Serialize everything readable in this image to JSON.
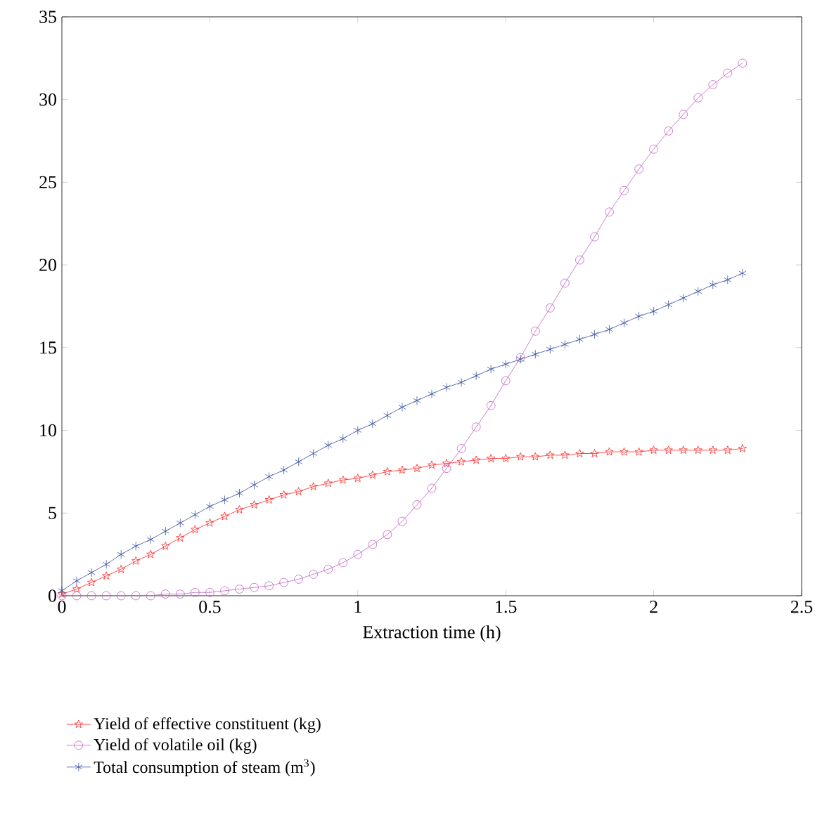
{
  "chart_data": {
    "type": "line",
    "xlabel": "Extraction time (h)",
    "xlim": [
      0,
      2.5
    ],
    "ylim": [
      0,
      35
    ],
    "xticks": [
      0,
      0.5,
      1,
      1.5,
      2,
      2.5
    ],
    "yticks": [
      0,
      5,
      10,
      15,
      20,
      25,
      30,
      35
    ],
    "grid": false,
    "legend": "bottom",
    "line_style": "solid",
    "x": [
      0,
      0.05,
      0.1,
      0.15,
      0.2,
      0.25,
      0.3,
      0.35,
      0.4,
      0.45,
      0.5,
      0.55,
      0.6,
      0.65,
      0.7,
      0.75,
      0.8,
      0.85,
      0.9,
      0.95,
      1.0,
      1.05,
      1.1,
      1.15,
      1.2,
      1.25,
      1.3,
      1.35,
      1.4,
      1.45,
      1.5,
      1.55,
      1.6,
      1.65,
      1.7,
      1.75,
      1.8,
      1.85,
      1.9,
      1.95,
      2.0,
      2.05,
      2.1,
      2.15,
      2.2,
      2.25,
      2.3
    ],
    "series": [
      {
        "name": "Yield of effective constituent (kg)",
        "color": "#ff2020",
        "marker": "star",
        "values": [
          0.1,
          0.4,
          0.8,
          1.2,
          1.6,
          2.1,
          2.5,
          3.0,
          3.5,
          4.0,
          4.4,
          4.8,
          5.2,
          5.5,
          5.8,
          6.1,
          6.3,
          6.6,
          6.8,
          7.0,
          7.1,
          7.3,
          7.5,
          7.6,
          7.7,
          7.9,
          8.0,
          8.1,
          8.2,
          8.3,
          8.3,
          8.4,
          8.4,
          8.5,
          8.5,
          8.6,
          8.6,
          8.7,
          8.7,
          8.7,
          8.8,
          8.8,
          8.8,
          8.8,
          8.8,
          8.8,
          8.9
        ]
      },
      {
        "name": "Yield of volatile oil (kg)",
        "color": "#c060c0",
        "marker": "circle",
        "values": [
          0.0,
          0.0,
          0.0,
          0.0,
          0.0,
          0.0,
          0.0,
          0.1,
          0.1,
          0.2,
          0.2,
          0.3,
          0.4,
          0.5,
          0.6,
          0.8,
          1.0,
          1.3,
          1.6,
          2.0,
          2.5,
          3.1,
          3.7,
          4.5,
          5.5,
          6.5,
          7.7,
          8.9,
          10.2,
          11.5,
          13.0,
          14.4,
          16.0,
          17.4,
          18.9,
          20.3,
          21.7,
          23.2,
          24.5,
          25.8,
          27.0,
          28.1,
          29.1,
          30.1,
          30.9,
          31.6,
          32.2
        ]
      },
      {
        "name": "Total consumption of steam (m$^{3}$)",
        "color": "#3a52a0",
        "marker": "cross",
        "values": [
          0.3,
          0.9,
          1.4,
          1.9,
          2.5,
          3.0,
          3.4,
          3.9,
          4.4,
          4.9,
          5.4,
          5.8,
          6.2,
          6.7,
          7.2,
          7.6,
          8.1,
          8.6,
          9.1,
          9.5,
          10.0,
          10.4,
          10.9,
          11.4,
          11.8,
          12.2,
          12.6,
          12.9,
          13.3,
          13.7,
          14.0,
          14.3,
          14.6,
          14.9,
          15.2,
          15.5,
          15.8,
          16.1,
          16.5,
          16.9,
          17.2,
          17.6,
          18.0,
          18.4,
          18.8,
          19.1,
          19.5
        ]
      }
    ]
  }
}
